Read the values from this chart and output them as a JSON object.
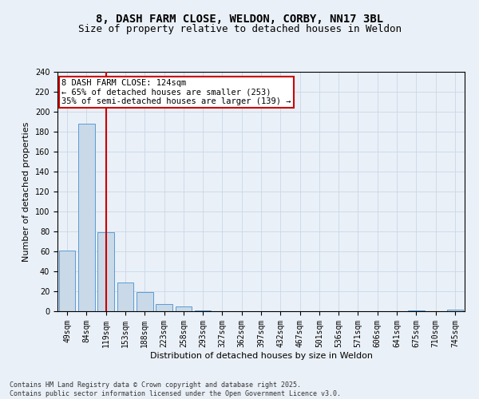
{
  "title_line1": "8, DASH FARM CLOSE, WELDON, CORBY, NN17 3BL",
  "title_line2": "Size of property relative to detached houses in Weldon",
  "xlabel": "Distribution of detached houses by size in Weldon",
  "ylabel": "Number of detached properties",
  "categories": [
    "49sqm",
    "84sqm",
    "119sqm",
    "153sqm",
    "188sqm",
    "223sqm",
    "258sqm",
    "293sqm",
    "327sqm",
    "362sqm",
    "397sqm",
    "432sqm",
    "467sqm",
    "501sqm",
    "536sqm",
    "571sqm",
    "606sqm",
    "641sqm",
    "675sqm",
    "710sqm",
    "745sqm"
  ],
  "values": [
    61,
    188,
    79,
    29,
    19,
    7,
    5,
    1,
    0,
    0,
    0,
    0,
    0,
    0,
    0,
    0,
    0,
    0,
    1,
    0,
    2
  ],
  "bar_color": "#c9d9e8",
  "bar_edge_color": "#5b9bd5",
  "vline_x": 2.0,
  "vline_color": "#cc0000",
  "annotation_text": "8 DASH FARM CLOSE: 124sqm\n← 65% of detached houses are smaller (253)\n35% of semi-detached houses are larger (139) →",
  "annotation_box_color": "#ffffff",
  "annotation_box_edge": "#cc0000",
  "ylim": [
    0,
    240
  ],
  "yticks": [
    0,
    20,
    40,
    60,
    80,
    100,
    120,
    140,
    160,
    180,
    200,
    220,
    240
  ],
  "grid_color": "#c8d8e8",
  "background_color": "#eaf0f7",
  "plot_bg_color": "#eaf0f7",
  "footer": "Contains HM Land Registry data © Crown copyright and database right 2025.\nContains public sector information licensed under the Open Government Licence v3.0.",
  "title_fontsize": 10,
  "subtitle_fontsize": 9,
  "axis_label_fontsize": 8,
  "tick_fontsize": 7,
  "annotation_fontsize": 7.5,
  "footer_fontsize": 6
}
